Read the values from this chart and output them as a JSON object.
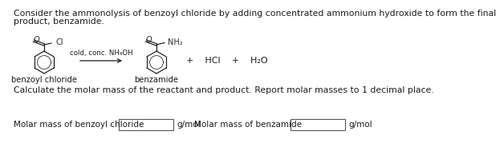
{
  "title_line1": "Consider the ammonolysis of benzoyl chloride by adding concentrated ammonium hydroxide to form the final",
  "title_line2": "product, benzamide.",
  "reaction_condition": "cold, conc. NH₄OH",
  "label_left": "benzoyl chloride",
  "label_right": "benzamide",
  "plus_text": "+    HCl    +    H₂O",
  "calc_text": "Calculate the molar mass of the reactant and product. Report molar masses to 1 decimal place.",
  "label_box1": "Molar mass of benzoyl chloride",
  "label_box2": "Molar mass of benzamide",
  "unit": "g/mol",
  "bg_color": "#ffffff",
  "text_color": "#1a1a1a",
  "mol_text_color": "#2a2a2a"
}
